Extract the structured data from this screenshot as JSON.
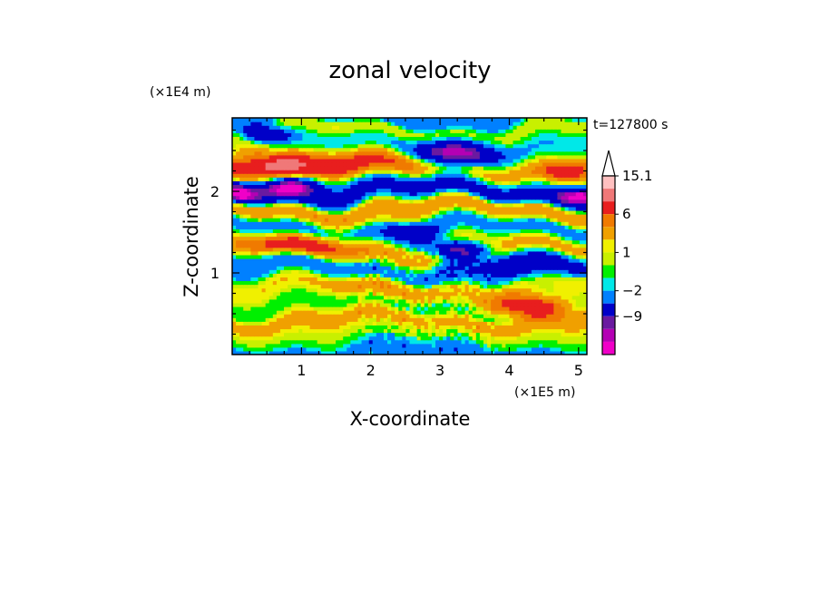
{
  "chart_data": {
    "type": "heatmap",
    "title": "zonal velocity",
    "xlabel": "X-coordinate",
    "ylabel": "Z-coordinate",
    "x_unit_label": "(×1E5 m)",
    "y_unit_label": "(×1E4 m)",
    "time_label": "t=127800 s",
    "xlim": [
      0,
      5.12
    ],
    "ylim": [
      0,
      2.9
    ],
    "x_ticks": [
      "1",
      "2",
      "3",
      "4",
      "5"
    ],
    "x_tick_values": [
      1,
      2,
      3,
      4,
      5
    ],
    "y_ticks": [
      "1",
      "2"
    ],
    "y_tick_values": [
      1,
      2
    ],
    "colorbar": {
      "labels": [
        "15.1",
        "6",
        "1",
        "−2",
        "−9"
      ],
      "label_values": [
        15.1,
        6,
        1,
        -2,
        -9
      ],
      "colors": [
        "#FFFFFF",
        "#FFC0C0",
        "#F07878",
        "#E81E1E",
        "#F07A00",
        "#F0A000",
        "#F0F000",
        "#C8F000",
        "#00F000",
        "#00E8E8",
        "#0080FF",
        "#0000C8",
        "#6A1AA0",
        "#B400B4",
        "#F000C8"
      ]
    },
    "bands": [
      {
        "y": 0.05,
        "v": -3
      },
      {
        "y": 0.22,
        "v": 0
      },
      {
        "y": 0.42,
        "v": 3
      },
      {
        "y": 0.6,
        "v": -1
      },
      {
        "y": 0.82,
        "v": 2
      },
      {
        "y": 1.05,
        "v": -4
      },
      {
        "y": 1.3,
        "v": 3
      },
      {
        "y": 1.55,
        "v": -3
      },
      {
        "y": 1.78,
        "v": 4
      },
      {
        "y": 2.0,
        "v": -6
      },
      {
        "y": 2.3,
        "v": 3
      },
      {
        "y": 2.55,
        "v": -2
      },
      {
        "y": 2.75,
        "v": 1
      },
      {
        "y": 2.9,
        "v": -3
      }
    ],
    "blobs": [
      {
        "x": 0.5,
        "y": 2.35,
        "v": 9,
        "rx": 0.7,
        "ry": 0.18
      },
      {
        "x": 2.0,
        "y": 2.33,
        "v": 5,
        "rx": 0.9,
        "ry": 0.16
      },
      {
        "x": 3.2,
        "y": 2.45,
        "v": -12,
        "rx": 0.55,
        "ry": 0.16
      },
      {
        "x": 0.8,
        "y": 2.07,
        "v": -12,
        "rx": 0.45,
        "ry": 0.12
      },
      {
        "x": 0.1,
        "y": 1.98,
        "v": -10,
        "rx": 0.25,
        "ry": 0.12
      },
      {
        "x": 0.5,
        "y": 2.7,
        "v": -10,
        "rx": 0.3,
        "ry": 0.1
      },
      {
        "x": 3.25,
        "y": 1.3,
        "v": -12,
        "rx": 0.4,
        "ry": 0.11
      },
      {
        "x": 2.6,
        "y": 1.5,
        "v": -5,
        "rx": 0.4,
        "ry": 0.12
      },
      {
        "x": 4.3,
        "y": 1.08,
        "v": -5,
        "rx": 0.6,
        "ry": 0.16
      },
      {
        "x": 4.3,
        "y": 0.6,
        "v": 9,
        "rx": 0.55,
        "ry": 0.14
      },
      {
        "x": 5.0,
        "y": 1.95,
        "v": -10,
        "rx": 0.3,
        "ry": 0.1
      },
      {
        "x": 1.1,
        "y": 1.35,
        "v": 6,
        "rx": 0.8,
        "ry": 0.12
      },
      {
        "x": 4.8,
        "y": 2.25,
        "v": 6,
        "rx": 0.35,
        "ry": 0.12
      },
      {
        "x": 2.2,
        "y": 0.85,
        "v": 2,
        "rx": 0.7,
        "ry": 0.22
      }
    ]
  }
}
